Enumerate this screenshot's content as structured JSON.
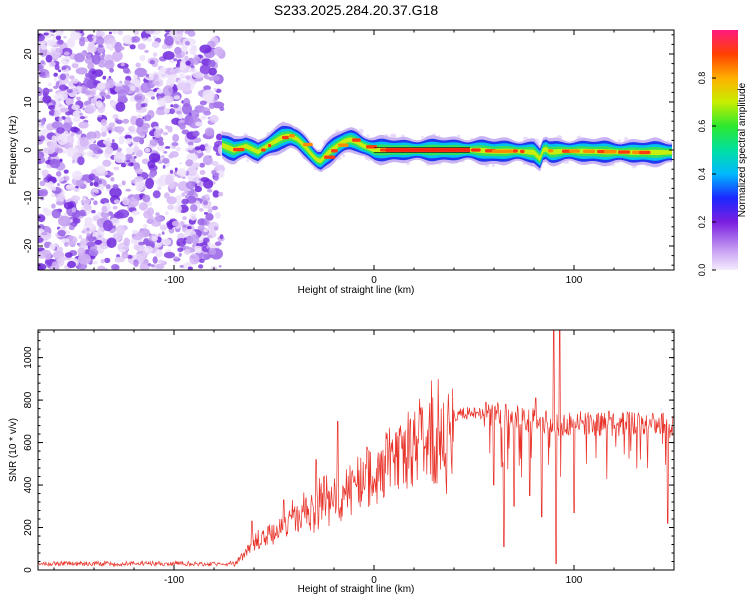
{
  "title": "S233.2025.284.20.37.G18",
  "chart_data": [
    {
      "type": "heatmap",
      "xlabel": "Height of straight line (km)",
      "ylabel": "Frequency (Hz)",
      "xlim": [
        -168,
        150
      ],
      "ylim": [
        -25,
        25
      ],
      "xticks": [
        -100,
        0,
        100
      ],
      "xtick_labels": [
        "-100",
        "0",
        "100"
      ],
      "yticks": [
        -20,
        -10,
        0,
        10,
        20
      ],
      "ytick_labels": [
        "-20",
        "-10",
        "0",
        "10",
        "20"
      ],
      "noise_region_x": [
        -168,
        -76
      ],
      "signal_start_x": -76,
      "ridge": {
        "x": [
          -76,
          -70,
          -64,
          -58,
          -52,
          -46,
          -42,
          -38,
          -34,
          -30,
          -27,
          -24,
          -21,
          -18,
          -15,
          -12,
          -9,
          -6,
          -3,
          0,
          10,
          30,
          50,
          60,
          70,
          80,
          83,
          85,
          88,
          95,
          110,
          130,
          150
        ],
        "freq": [
          1.0,
          0.0,
          0.8,
          -0.4,
          1.2,
          2.6,
          3.0,
          2.2,
          0.5,
          -1.5,
          -2.5,
          -1.0,
          0.0,
          1.0,
          1.8,
          2.2,
          1.8,
          1.0,
          0.5,
          0.0,
          0.0,
          0.0,
          0.0,
          -0.3,
          -0.2,
          -0.5,
          -1.8,
          0.5,
          -0.5,
          -0.2,
          -0.3,
          -0.5,
          -0.5
        ]
      },
      "colorbar": {
        "label": "Normalized spectral amplitude",
        "range": [
          0,
          1
        ],
        "ticks": [
          "0.0",
          "0.2",
          "0.4",
          "0.6",
          "0.8"
        ],
        "tick_values": [
          0.0,
          0.2,
          0.4,
          0.6,
          0.8
        ]
      }
    },
    {
      "type": "line",
      "xlabel": "Height of straight line (km)",
      "ylabel": "SNR (10 * v/v)",
      "xlim": [
        -168,
        150
      ],
      "ylim": [
        0,
        1130
      ],
      "xticks": [
        -100,
        0,
        100
      ],
      "xtick_labels": [
        "-100",
        "0",
        "100"
      ],
      "yticks": [
        0,
        200,
        400,
        600,
        800,
        1000
      ],
      "ytick_labels": [
        "0",
        "200",
        "400",
        "600",
        "800",
        "1000"
      ],
      "series": [
        {
          "name": "SNR",
          "color": "#e8332a",
          "envelope_x": [
            -168,
            -70,
            -65,
            -60,
            -50,
            -40,
            -30,
            -20,
            -10,
            0,
            10,
            20,
            30,
            40,
            50,
            60,
            70,
            80,
            90,
            100,
            110,
            120,
            130,
            140,
            150
          ],
          "envelope_y": [
            30,
            30,
            90,
            150,
            220,
            280,
            330,
            400,
            470,
            560,
            640,
            690,
            720,
            730,
            740,
            730,
            720,
            700,
            690,
            690,
            690,
            690,
            690,
            690,
            680
          ],
          "spikes": [
            {
              "x": -61,
              "y": 230
            },
            {
              "x": -45,
              "y": 330
            },
            {
              "x": -29,
              "y": 520
            },
            {
              "x": -18,
              "y": 700
            },
            {
              "x": 56,
              "y": 790
            },
            {
              "x": 66,
              "y": 780
            },
            {
              "x": 81,
              "y": 810
            },
            {
              "x": 90,
              "y": 1130
            },
            {
              "x": 93,
              "y": 1130
            }
          ],
          "dips": [
            {
              "x": 60,
              "y": 400
            },
            {
              "x": 65,
              "y": 110
            },
            {
              "x": 70,
              "y": 300
            },
            {
              "x": 78,
              "y": 350
            },
            {
              "x": 84,
              "y": 250
            },
            {
              "x": 91,
              "y": 30
            },
            {
              "x": 100,
              "y": 270
            },
            {
              "x": 147,
              "y": 220
            }
          ]
        }
      ]
    }
  ]
}
